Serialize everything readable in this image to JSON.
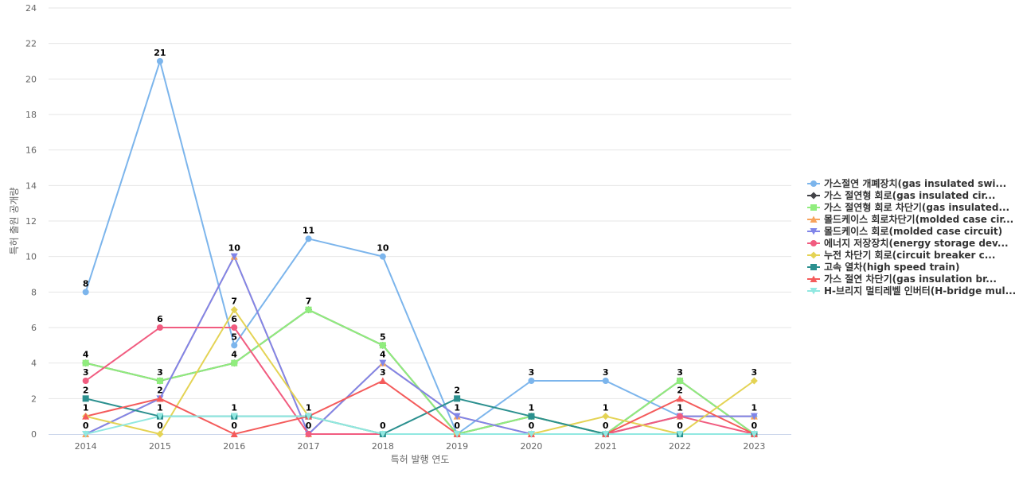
{
  "chart_data": {
    "type": "line",
    "x": [
      "2014",
      "2015",
      "2016",
      "2017",
      "2018",
      "2019",
      "2020",
      "2021",
      "2022",
      "2023"
    ],
    "xlabel": "특허 발행 연도",
    "ylabel": "특허 출원 공개량",
    "ylim": [
      0,
      24
    ],
    "yticks": [
      0,
      2,
      4,
      6,
      8,
      10,
      12,
      14,
      16,
      18,
      20,
      22,
      24
    ],
    "grid": true,
    "legend_position": "right",
    "series": [
      {
        "name": "가스절연 개폐장치(gas insulated swi...",
        "color": "#7cb5ec",
        "marker": "circle",
        "values": [
          8,
          21,
          5,
          11,
          10,
          0,
          3,
          3,
          1,
          1
        ]
      },
      {
        "name": "가스 절연형 회로(gas insulated cir...",
        "color": "#434348",
        "marker": "diamond",
        "values": [
          4,
          3,
          4,
          7,
          5,
          0,
          1,
          0,
          3,
          0
        ]
      },
      {
        "name": "가스 절연형 회로 차단기(gas insulated...",
        "color": "#90ed7d",
        "marker": "square",
        "values": [
          4,
          3,
          4,
          7,
          5,
          0,
          1,
          0,
          3,
          0
        ]
      },
      {
        "name": "몰드케이스 회로차단기(molded case cir...",
        "color": "#f7a35c",
        "marker": "triangle",
        "values": [
          0,
          2,
          10,
          0,
          4,
          1,
          0,
          0,
          1,
          1
        ]
      },
      {
        "name": "몰드케이스 회로(molded case circuit)",
        "color": "#8085e9",
        "marker": "triangle-down",
        "values": [
          0,
          2,
          10,
          0,
          4,
          1,
          0,
          0,
          1,
          1
        ]
      },
      {
        "name": "에너지 저장장치(energy storage dev...",
        "color": "#f15c80",
        "marker": "circle",
        "values": [
          3,
          6,
          6,
          0,
          0,
          0,
          0,
          0,
          1,
          0
        ]
      },
      {
        "name": "누전 차단기 회로(circuit breaker c...",
        "color": "#e4d354",
        "marker": "diamond",
        "values": [
          1,
          0,
          7,
          1,
          0,
          0,
          0,
          1,
          0,
          3
        ]
      },
      {
        "name": "고속 열차(high speed train)",
        "color": "#2b908f",
        "marker": "square",
        "values": [
          2,
          1,
          1,
          1,
          0,
          2,
          1,
          0,
          0,
          0
        ]
      },
      {
        "name": "가스 절연 차단기(gas insulation br...",
        "color": "#f45b5b",
        "marker": "triangle",
        "values": [
          1,
          2,
          0,
          1,
          3,
          0,
          0,
          0,
          2,
          0
        ]
      },
      {
        "name": "H-브리지 멀티레벨 인버터(H-bridge mul...",
        "color": "#91e8e1",
        "marker": "triangle-down",
        "values": [
          0,
          1,
          1,
          1,
          0,
          0,
          0,
          0,
          0,
          0
        ]
      }
    ],
    "data_labels": [
      {
        "x": "2014",
        "y": 8,
        "text": "8"
      },
      {
        "x": "2014",
        "y": 4,
        "text": "4"
      },
      {
        "x": "2014",
        "y": 3,
        "text": "3"
      },
      {
        "x": "2014",
        "y": 2,
        "text": "2"
      },
      {
        "x": "2014",
        "y": 1,
        "text": "1"
      },
      {
        "x": "2014",
        "y": 0,
        "text": "0"
      },
      {
        "x": "2015",
        "y": 21,
        "text": "21"
      },
      {
        "x": "2015",
        "y": 6,
        "text": "6"
      },
      {
        "x": "2015",
        "y": 3,
        "text": "3"
      },
      {
        "x": "2015",
        "y": 2,
        "text": "2"
      },
      {
        "x": "2015",
        "y": 1,
        "text": "1"
      },
      {
        "x": "2015",
        "y": 0,
        "text": "0"
      },
      {
        "x": "2016",
        "y": 10,
        "text": "10"
      },
      {
        "x": "2016",
        "y": 7,
        "text": "7"
      },
      {
        "x": "2016",
        "y": 6,
        "text": "6"
      },
      {
        "x": "2016",
        "y": 5,
        "text": "5"
      },
      {
        "x": "2016",
        "y": 4,
        "text": "4"
      },
      {
        "x": "2016",
        "y": 1,
        "text": "1"
      },
      {
        "x": "2016",
        "y": 0,
        "text": "0"
      },
      {
        "x": "2017",
        "y": 11,
        "text": "11"
      },
      {
        "x": "2017",
        "y": 7,
        "text": "7"
      },
      {
        "x": "2017",
        "y": 1,
        "text": "1"
      },
      {
        "x": "2017",
        "y": 0,
        "text": "0"
      },
      {
        "x": "2018",
        "y": 10,
        "text": "10"
      },
      {
        "x": "2018",
        "y": 5,
        "text": "5"
      },
      {
        "x": "2018",
        "y": 4,
        "text": "4"
      },
      {
        "x": "2018",
        "y": 3,
        "text": "3"
      },
      {
        "x": "2018",
        "y": 0,
        "text": "0"
      },
      {
        "x": "2019",
        "y": 2,
        "text": "2"
      },
      {
        "x": "2019",
        "y": 1,
        "text": "1"
      },
      {
        "x": "2019",
        "y": 0,
        "text": "0"
      },
      {
        "x": "2020",
        "y": 3,
        "text": "3"
      },
      {
        "x": "2020",
        "y": 1,
        "text": "1"
      },
      {
        "x": "2020",
        "y": 0,
        "text": "0"
      },
      {
        "x": "2021",
        "y": 3,
        "text": "3"
      },
      {
        "x": "2021",
        "y": 1,
        "text": "1"
      },
      {
        "x": "2021",
        "y": 0,
        "text": "0"
      },
      {
        "x": "2022",
        "y": 3,
        "text": "3"
      },
      {
        "x": "2022",
        "y": 2,
        "text": "2"
      },
      {
        "x": "2022",
        "y": 1,
        "text": "1"
      },
      {
        "x": "2022",
        "y": 0,
        "text": "0"
      },
      {
        "x": "2023",
        "y": 3,
        "text": "3"
      },
      {
        "x": "2023",
        "y": 1,
        "text": "1"
      },
      {
        "x": "2023",
        "y": 0,
        "text": "0"
      }
    ]
  }
}
